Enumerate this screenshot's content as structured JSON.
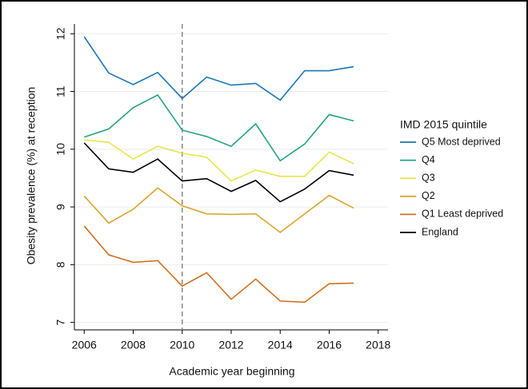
{
  "chart_data": {
    "type": "line",
    "x_label": "Academic year beginning",
    "y_label": "Obesity prevalence (%) at reception",
    "legend_title": "IMD 2015 quintile",
    "legend_position": "right",
    "grid": true,
    "vline": 2010,
    "x": [
      2006,
      2007,
      2008,
      2009,
      2010,
      2011,
      2012,
      2013,
      2014,
      2015,
      2016,
      2017
    ],
    "xlim": [
      2005.6,
      2018.4
    ],
    "xticks": [
      2006,
      2008,
      2010,
      2012,
      2014,
      2016,
      2018
    ],
    "ylim": [
      6.87,
      12.17
    ],
    "yticks": [
      7,
      8,
      9,
      10,
      11,
      12
    ],
    "series": [
      {
        "name": "Q5 Most deprived",
        "color": "#1a76b5",
        "values": [
          11.95,
          11.32,
          11.12,
          11.33,
          10.88,
          11.25,
          11.11,
          11.14,
          10.85,
          11.36,
          11.36,
          11.43
        ]
      },
      {
        "name": "Q4",
        "color": "#23a384",
        "values": [
          10.21,
          10.35,
          10.72,
          10.94,
          10.33,
          10.22,
          10.05,
          10.44,
          9.8,
          10.09,
          10.6,
          10.49
        ]
      },
      {
        "name": "Q3",
        "color": "#e6e64c",
        "values": [
          10.16,
          10.12,
          9.83,
          10.05,
          9.93,
          9.86,
          9.45,
          9.64,
          9.53,
          9.53,
          9.95,
          9.75
        ]
      },
      {
        "name": "Q2",
        "color": "#daa52c",
        "values": [
          9.19,
          8.72,
          8.96,
          9.33,
          9.02,
          8.88,
          8.87,
          8.88,
          8.56,
          8.88,
          9.2,
          8.98
        ]
      },
      {
        "name": "Q1 Least deprived",
        "color": "#d2711f",
        "values": [
          8.67,
          8.17,
          8.04,
          8.07,
          7.63,
          7.86,
          7.4,
          7.75,
          7.37,
          7.35,
          7.67,
          7.68
        ]
      },
      {
        "name": "England",
        "color": "#000000",
        "values": [
          10.11,
          9.66,
          9.6,
          9.83,
          9.45,
          9.49,
          9.27,
          9.46,
          9.09,
          9.31,
          9.63,
          9.55
        ]
      }
    ]
  }
}
